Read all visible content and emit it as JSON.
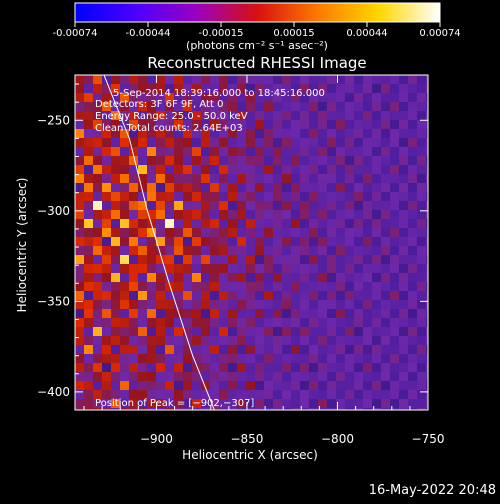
{
  "colorbar": {
    "ticks": [
      "-0.00074",
      "-0.00044",
      "-0.00015",
      "0.00015",
      "0.00044",
      "0.00074"
    ],
    "unit_label": "(photons cm⁻² s⁻¹ asec⁻²)",
    "colors": [
      "#0000ff",
      "#4b00ff",
      "#9b00c0",
      "#d81010",
      "#ff7a00",
      "#ffd700",
      "#ffffff"
    ]
  },
  "chart_data": {
    "type": "heatmap",
    "title": "Reconstructed RHESSI Image",
    "xlabel": "Heliocentric X (arcsec)",
    "ylabel": "Heliocentric Y (arcsec)",
    "xlim": [
      -945,
      -750
    ],
    "ylim": [
      -410,
      -225
    ],
    "xticks": [
      -900,
      -850,
      -800,
      -750
    ],
    "xtick_labels": [
      "−900",
      "−850",
      "−800",
      "−750"
    ],
    "yticks": [
      -250,
      -300,
      -350,
      -400
    ],
    "ytick_labels": [
      "−250",
      "−300",
      "−350",
      "−400"
    ],
    "annotations": [
      "5-Sep-2014 18:39:16.000 to 18:45:16.000",
      "Detectors: 3F 6F 9F, Att 0",
      "Energy Range: 25.0 - 50.0 keV",
      "Clean    Total counts: 2.64E+03",
      "Position of Peak = [−902,−307]"
    ],
    "peak": [
      -902,
      -307
    ],
    "limb_curve": [
      [
        -929,
        -225
      ],
      [
        -915,
        -260
      ],
      [
        -905,
        -300
      ],
      [
        -893,
        -340
      ],
      [
        -880,
        -380
      ],
      [
        -868,
        -410
      ]
    ]
  },
  "footer": {
    "timestamp": "16-May-2022 20:48"
  }
}
